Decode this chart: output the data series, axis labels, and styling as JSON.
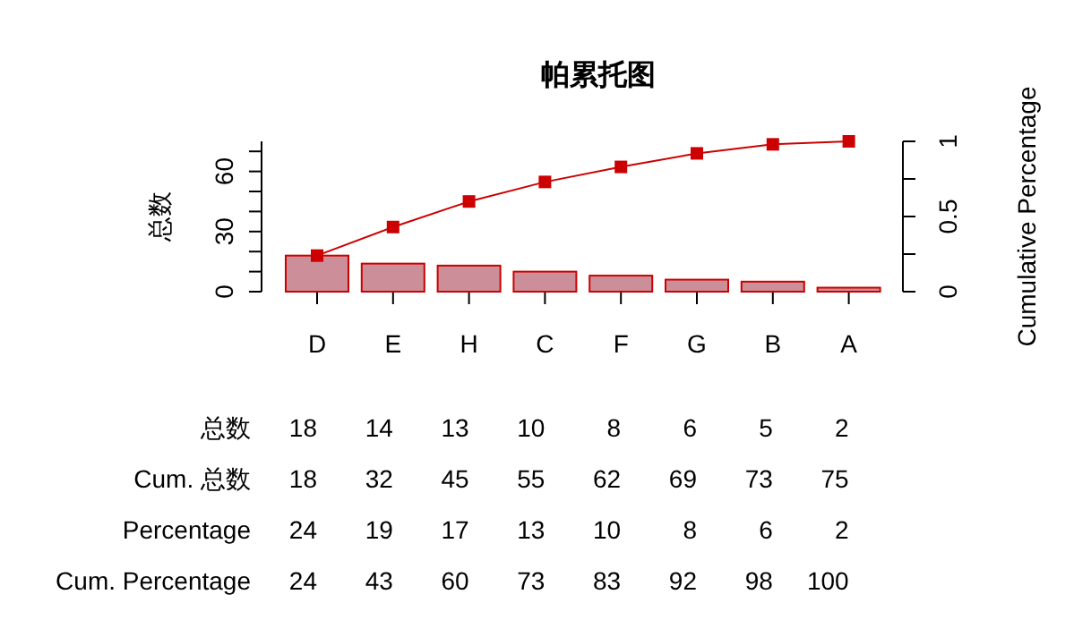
{
  "chart_data": {
    "type": "bar",
    "title": "帕累托图",
    "ylabel": "总数",
    "y2label": "Cumulative Percentage",
    "categories": [
      "D",
      "E",
      "H",
      "C",
      "F",
      "G",
      "B",
      "A"
    ],
    "series": [
      {
        "color": "#cc8f9a",
        "values": [
          18,
          14,
          13,
          10,
          8,
          6,
          5,
          2
        ]
      },
      {
        "type": "line",
        "axis": "y2",
        "color": "#cc0000",
        "values": [
          0.24,
          0.43,
          0.6,
          0.73,
          0.83,
          0.92,
          0.98,
          1
        ]
      }
    ],
    "marker": "square",
    "ylim": [
      0,
      75
    ],
    "yticks": [
      0,
      {
        "value": 10,
        "label": null
      },
      {
        "value": 20,
        "label": null
      },
      30,
      {
        "value": 40,
        "label": null
      },
      {
        "value": 50,
        "label": null
      },
      60,
      {
        "value": 70,
        "label": null
      }
    ],
    "y2lim": [
      0,
      1
    ],
    "y2ticks": [
      0,
      {
        "value": 0.25,
        "label": null
      },
      0.5,
      {
        "value": 0.75,
        "label": null
      },
      1
    ],
    "annotations": [
      "总数",
      "18",
      "14",
      "13",
      "10",
      "8",
      "6",
      "5",
      "2",
      "Cum. 总数",
      "18",
      "32",
      "45",
      "55",
      "62",
      "69",
      "73",
      "75",
      "Percentage",
      "24",
      "19",
      "17",
      "13",
      "10",
      "8",
      "6",
      "2",
      "Cum. Percentage",
      "24",
      "43",
      "60",
      "73",
      "83",
      "92",
      "98",
      "100"
    ]
  }
}
